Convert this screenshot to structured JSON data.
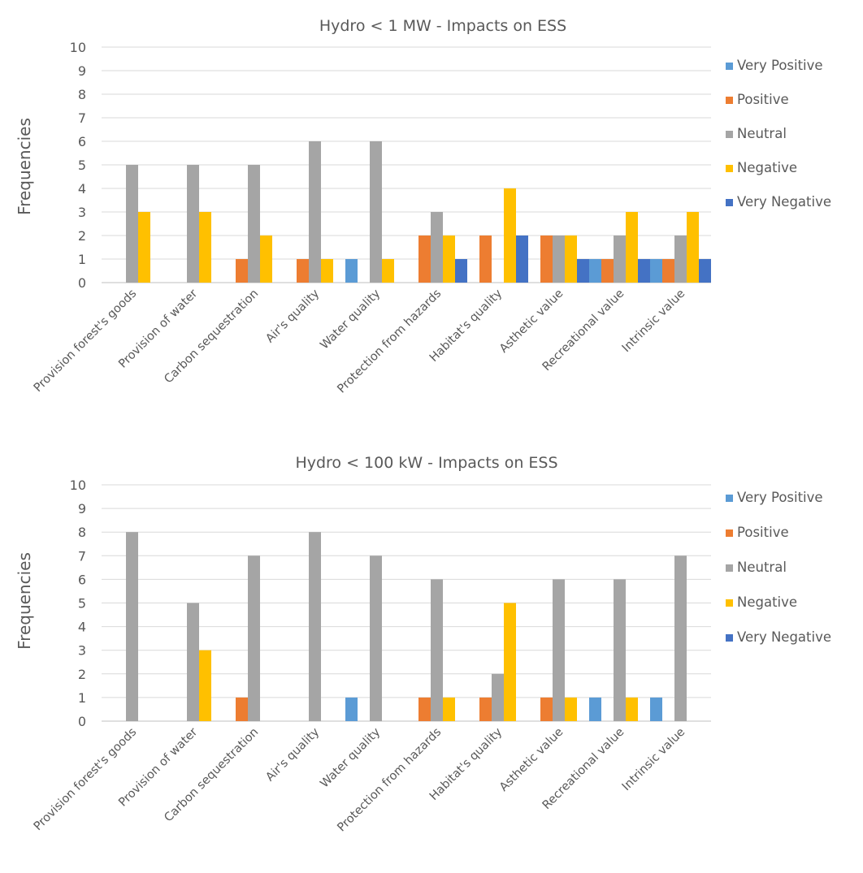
{
  "chart_data": [
    {
      "type": "bar",
      "title": "Hydro < 1 MW - Impacts on ESS",
      "xlabel": "",
      "ylabel": "Frequencies",
      "ylim": [
        0,
        10
      ],
      "yticks": [
        0,
        1,
        2,
        3,
        4,
        5,
        6,
        7,
        8,
        9,
        10
      ],
      "grid": true,
      "legend_position": "right",
      "categories": [
        "Provision forest's goods",
        "Provision of water",
        "Carbon sequestration",
        "Air's quality",
        "Water quality",
        "Protection from hazards",
        "Habitat's quality",
        "Asthetic value",
        "Recreational value",
        "Intrinsic value"
      ],
      "series": [
        {
          "name": "Very Positive",
          "color": "#5b9bd5",
          "values": [
            0,
            0,
            0,
            0,
            1,
            0,
            0,
            0,
            1,
            1
          ]
        },
        {
          "name": "Positive",
          "color": "#ed7d31",
          "values": [
            0,
            0,
            1,
            1,
            0,
            2,
            2,
            2,
            1,
            1
          ]
        },
        {
          "name": "Neutral",
          "color": "#a5a5a5",
          "values": [
            5,
            5,
            5,
            6,
            6,
            3,
            0,
            2,
            2,
            2
          ]
        },
        {
          "name": "Negative",
          "color": "#ffc000",
          "values": [
            3,
            3,
            2,
            1,
            1,
            2,
            4,
            2,
            3,
            3
          ]
        },
        {
          "name": "Very Negative",
          "color": "#4472c4",
          "values": [
            0,
            0,
            0,
            0,
            0,
            1,
            2,
            1,
            1,
            1
          ]
        }
      ]
    },
    {
      "type": "bar",
      "title": "Hydro < 100 kW - Impacts on ESS",
      "xlabel": "",
      "ylabel": "Frequencies",
      "ylim": [
        0,
        10
      ],
      "yticks": [
        0,
        1,
        2,
        3,
        4,
        5,
        6,
        7,
        8,
        9,
        10
      ],
      "grid": true,
      "legend_position": "right",
      "categories": [
        "Provision forest's goods",
        "Provision of water",
        "Carbon sequestration",
        "Air's quality",
        "Water quality",
        "Protection from hazards",
        "Habitat's quality",
        "Asthetic value",
        "Recreational value",
        "Intrinsic value"
      ],
      "series": [
        {
          "name": "Very Positive",
          "color": "#5b9bd5",
          "values": [
            0,
            0,
            0,
            0,
            1,
            0,
            0,
            0,
            1,
            1
          ]
        },
        {
          "name": "Positive",
          "color": "#ed7d31",
          "values": [
            0,
            0,
            1,
            0,
            0,
            1,
            1,
            1,
            0,
            0
          ]
        },
        {
          "name": "Neutral",
          "color": "#a5a5a5",
          "values": [
            8,
            5,
            7,
            8,
            7,
            6,
            2,
            6,
            6,
            7
          ]
        },
        {
          "name": "Negative",
          "color": "#ffc000",
          "values": [
            0,
            3,
            0,
            0,
            0,
            1,
            5,
            1,
            1,
            0
          ]
        },
        {
          "name": "Very Negative",
          "color": "#4472c4",
          "values": [
            0,
            0,
            0,
            0,
            0,
            0,
            0,
            0,
            0,
            0
          ]
        }
      ]
    }
  ]
}
